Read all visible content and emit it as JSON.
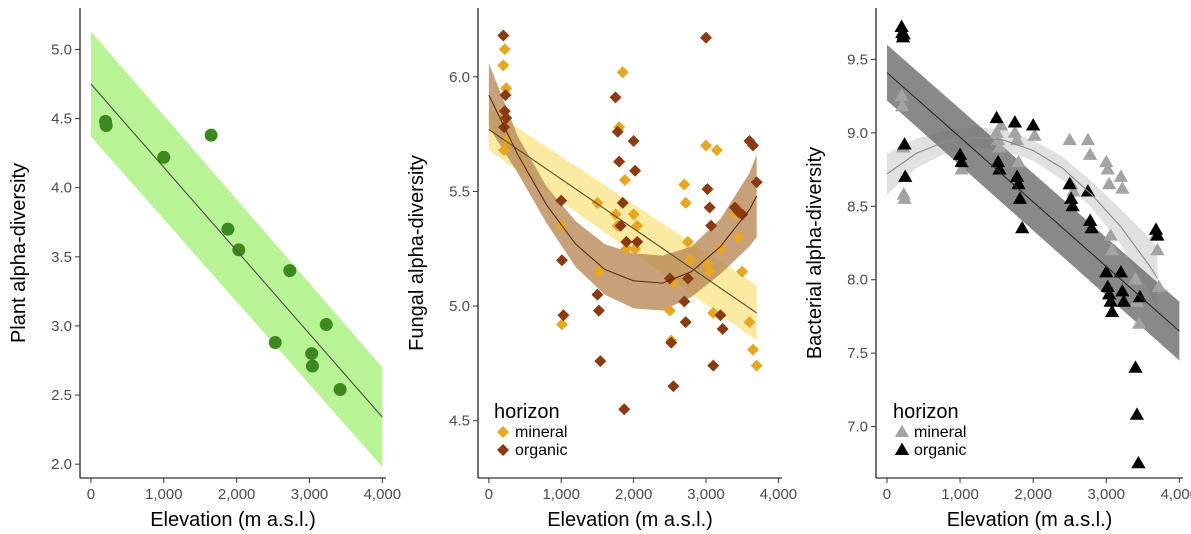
{
  "chart_data": [
    {
      "type": "scatter",
      "xlabel": "Elevation (m a.s.l.)",
      "ylabel": "Plant alpha-diversity",
      "xlim": [
        -150,
        4050
      ],
      "ylim": [
        1.9,
        5.3
      ],
      "xticks": [
        0,
        1000,
        2000,
        3000,
        4000
      ],
      "xtick_labels": [
        "0",
        "1,000",
        "2,000",
        "3,000",
        "4,000"
      ],
      "yticks": [
        2.0,
        2.5,
        3.0,
        3.5,
        4.0,
        4.5,
        5.0
      ],
      "ytick_labels": [
        "2.0",
        "2.5",
        "3.0",
        "3.5",
        "4.0",
        "4.5",
        "5.0"
      ],
      "grid": false,
      "series": [
        {
          "marker": "circle",
          "color": "#3c8a1e",
          "x": [
            200,
            210,
            1000,
            1650,
            1880,
            2030,
            2530,
            2730,
            3030,
            3040,
            3230,
            3420
          ],
          "y": [
            4.48,
            4.45,
            4.22,
            4.38,
            3.7,
            3.55,
            2.88,
            3.4,
            2.8,
            2.71,
            3.01,
            2.54
          ],
          "fit": {
            "kind": "linear",
            "x": [
              0,
              4000
            ],
            "y": [
              4.75,
              2.34
            ],
            "ci_lower": [
              4.37,
              1.98
            ],
            "ci_upper": [
              5.13,
              2.7
            ],
            "line_color": "#4a4a4a",
            "band_color": "#a6f07c"
          }
        }
      ]
    },
    {
      "type": "scatter",
      "xlabel": "Elevation (m a.s.l.)",
      "ylabel": "Fungal alpha-diversity",
      "xlim": [
        -150,
        4050
      ],
      "ylim": [
        4.25,
        6.3
      ],
      "xticks": [
        0,
        1000,
        2000,
        3000,
        4000
      ],
      "xtick_labels": [
        "0",
        "1,000",
        "2,000",
        "3,000",
        "4,000"
      ],
      "yticks": [
        4.5,
        5.0,
        5.5,
        6.0
      ],
      "ytick_labels": [
        "4.5",
        "5.0",
        "5.5",
        "6.0"
      ],
      "grid": false,
      "legend": {
        "title": "horizon",
        "position": "bottom-left"
      },
      "series": [
        {
          "name": "mineral",
          "marker": "diamond",
          "color": "#e8a723",
          "x": [
            200,
            220,
            240,
            210,
            250,
            1000,
            1010,
            1500,
            1520,
            1750,
            1780,
            1800,
            1850,
            1880,
            1900,
            2000,
            2020,
            2050,
            2500,
            2520,
            2550,
            2700,
            2720,
            2750,
            2780,
            3000,
            3020,
            3050,
            3100,
            3150,
            3200,
            3400,
            3450,
            3500,
            3600,
            3650,
            3700
          ],
          "y": [
            6.05,
            6.12,
            5.95,
            5.68,
            5.72,
            5.35,
            4.92,
            5.45,
            5.15,
            5.4,
            5.35,
            5.78,
            6.02,
            5.55,
            5.25,
            5.4,
            5.25,
            5.35,
            4.98,
            4.85,
            5.1,
            5.53,
            5.45,
            5.28,
            5.2,
            5.7,
            5.18,
            5.15,
            4.97,
            5.68,
            5.25,
            5.4,
            5.3,
            5.15,
            4.93,
            4.81,
            4.74
          ],
          "fit": {
            "kind": "linear",
            "x": [
              0,
              3700
            ],
            "y": [
              5.77,
              4.97
            ],
            "ci_lower": [
              5.68,
              4.85
            ],
            "ci_upper": [
              5.86,
              5.09
            ],
            "line_color": "#5a4a2a",
            "band_color": "#fae58a"
          }
        },
        {
          "name": "organic",
          "marker": "diamond",
          "color": "#8b3a12",
          "x": [
            200,
            220,
            240,
            210,
            230,
            1000,
            1010,
            1030,
            1500,
            1520,
            1540,
            1750,
            1780,
            1800,
            1820,
            1850,
            1870,
            1900,
            2000,
            2020,
            2050,
            2500,
            2520,
            2550,
            2700,
            2720,
            2750,
            3000,
            3020,
            3050,
            3070,
            3100,
            3200,
            3230,
            3400,
            3450,
            3500,
            3600,
            3650,
            3700
          ],
          "y": [
            6.18,
            5.85,
            5.82,
            5.78,
            5.92,
            5.46,
            5.2,
            4.96,
            5.05,
            4.98,
            4.76,
            5.91,
            5.76,
            5.63,
            5.35,
            5.45,
            4.55,
            5.28,
            5.72,
            5.59,
            5.28,
            5.12,
            4.84,
            4.65,
            5.02,
            4.93,
            5.12,
            6.17,
            5.51,
            5.43,
            5.35,
            4.74,
            4.96,
            4.9,
            5.43,
            5.41,
            5.4,
            5.72,
            5.7,
            5.54
          ],
          "fit": {
            "kind": "quadratic",
            "x": [
              0,
              400,
              800,
              1200,
              1600,
              2000,
              2400,
              2800,
              3200,
              3600,
              3700
            ],
            "y": [
              5.92,
              5.66,
              5.44,
              5.27,
              5.16,
              5.11,
              5.1,
              5.15,
              5.26,
              5.42,
              5.48
            ],
            "ci_lower": [
              5.78,
              5.58,
              5.36,
              5.17,
              5.05,
              4.99,
              4.98,
              5.04,
              5.14,
              5.26,
              5.3
            ],
            "ci_upper": [
              6.06,
              5.74,
              5.52,
              5.37,
              5.27,
              5.23,
              5.22,
              5.26,
              5.38,
              5.58,
              5.66
            ],
            "line_color": "#5a2e10",
            "band_color": "#b98a57"
          }
        }
      ]
    },
    {
      "type": "scatter",
      "xlabel": "Elevation (m a.s.l.)",
      "ylabel": "Bacterial alpha-diversity",
      "xlim": [
        -150,
        4050
      ],
      "ylim": [
        6.65,
        9.85
      ],
      "xticks": [
        0,
        1000,
        2000,
        3000,
        4000
      ],
      "xtick_labels": [
        "0",
        "1,000",
        "2,000",
        "3,000",
        "4,000"
      ],
      "yticks": [
        7.0,
        7.5,
        8.0,
        8.5,
        9.0,
        9.5
      ],
      "ytick_labels": [
        "7.0",
        "7.5",
        "8.0",
        "8.5",
        "9.0",
        "9.5"
      ],
      "grid": false,
      "legend": {
        "title": "horizon",
        "position": "bottom-left"
      },
      "series": [
        {
          "name": "mineral",
          "marker": "triangle",
          "color": "#a3a3a3",
          "x": [
            200,
            210,
            220,
            230,
            240,
            1000,
            1020,
            1500,
            1520,
            1540,
            1560,
            1750,
            1780,
            1800,
            2000,
            2020,
            2500,
            2520,
            2550,
            2750,
            2780,
            3000,
            3020,
            3040,
            3060,
            3080,
            3200,
            3220,
            3400,
            3420,
            3450,
            3680,
            3700,
            3720
          ],
          "y": [
            9.25,
            9.18,
            8.9,
            8.58,
            8.55,
            8.85,
            8.75,
            9.0,
            8.95,
            8.9,
            9.05,
            9.0,
            8.95,
            8.8,
            9.05,
            8.98,
            8.95,
            8.65,
            8.6,
            8.95,
            8.85,
            8.8,
            8.75,
            8.65,
            8.3,
            8.2,
            8.7,
            8.62,
            8.0,
            7.85,
            7.7,
            8.3,
            8.2,
            7.95
          ],
          "fit": {
            "kind": "quadratic",
            "x": [
              0,
              400,
              800,
              1200,
              1600,
              2000,
              2400,
              2800,
              3200,
              3600,
              3700
            ],
            "y": [
              8.72,
              8.86,
              8.94,
              8.97,
              8.95,
              8.88,
              8.76,
              8.58,
              8.36,
              8.09,
              8.01
            ],
            "ci_lower": [
              8.58,
              8.76,
              8.86,
              8.9,
              8.88,
              8.81,
              8.68,
              8.49,
              8.24,
              7.9,
              7.8
            ],
            "ci_upper": [
              8.86,
              8.96,
              9.02,
              9.04,
              9.02,
              8.95,
              8.84,
              8.67,
              8.48,
              8.28,
              8.22
            ],
            "line_color": "#8a8a8a",
            "band_color": "#d9d9d9"
          }
        },
        {
          "name": "organic",
          "marker": "triangle",
          "color": "#000000",
          "x": [
            200,
            210,
            220,
            230,
            240,
            250,
            1000,
            1020,
            1500,
            1520,
            1540,
            1750,
            1780,
            1800,
            1820,
            1850,
            2000,
            2500,
            2520,
            2540,
            2750,
            2780,
            2800,
            3000,
            3020,
            3040,
            3060,
            3080,
            3200,
            3220,
            3240,
            3400,
            3420,
            3440,
            3460,
            3680,
            3700
          ],
          "y": [
            9.72,
            9.68,
            9.65,
            9.67,
            8.92,
            8.7,
            8.85,
            8.8,
            9.1,
            8.8,
            8.75,
            9.07,
            8.7,
            8.65,
            8.55,
            8.35,
            9.05,
            8.65,
            8.55,
            8.5,
            8.6,
            8.4,
            8.35,
            8.05,
            7.95,
            7.9,
            7.85,
            7.78,
            8.05,
            7.92,
            7.85,
            7.4,
            7.08,
            6.75,
            7.88,
            8.34,
            8.3
          ],
          "fit": {
            "kind": "linear",
            "x": [
              0,
              4000
            ],
            "y": [
              9.41,
              7.65
            ],
            "ci_lower": [
              9.22,
              7.45
            ],
            "ci_upper": [
              9.6,
              7.85
            ],
            "line_color": "#2a2a2a",
            "band_color": "#6b6b6b"
          }
        }
      ]
    }
  ]
}
